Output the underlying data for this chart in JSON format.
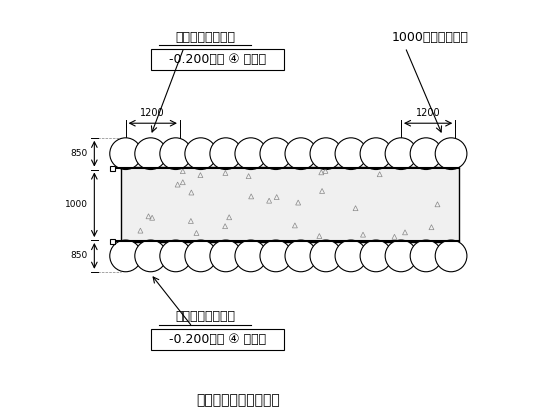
{
  "title": "三轴搅拌桩平面示意图",
  "top_label1": "三轴水泥土搅拌桩",
  "top_label2": "1000厚地下连续墙",
  "top_sub_label": "-0.200～第 ④ 层底部",
  "bottom_label1": "三轴水泥土搅拌桩",
  "bottom_sub_label": "-0.200～第 ④ 层底部",
  "dim_1200_left": "1200",
  "dim_1200_right": "1200",
  "dim_850_top": "850",
  "dim_1000": "1000",
  "dim_850_bot": "850",
  "bg_color": "#ffffff",
  "line_color": "#000000",
  "pile_color": "#ffffff",
  "fill_color": "#e8e8e8",
  "concrete_color": "#d0d0d0",
  "fig_width": 5.6,
  "fig_height": 4.2,
  "dpi": 100
}
